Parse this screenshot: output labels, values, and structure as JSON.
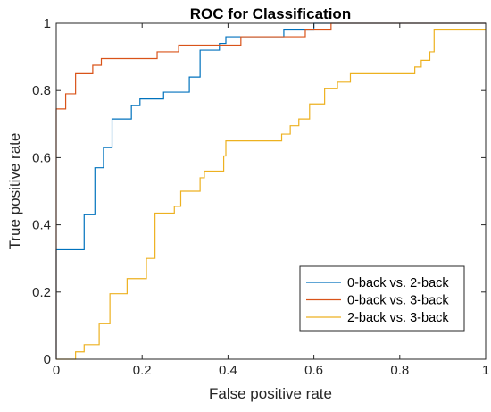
{
  "chart_data": {
    "type": "line",
    "title": "ROC for Classification",
    "xlabel": "False positive rate",
    "ylabel": "True positive rate",
    "xlim": [
      0,
      1
    ],
    "ylim": [
      0,
      1
    ],
    "xticks": [
      "0",
      "0.2",
      "0.4",
      "0.6",
      "0.8",
      "1"
    ],
    "yticks": [
      "0",
      "0.2",
      "0.4",
      "0.6",
      "0.8",
      "1"
    ],
    "grid": false,
    "legend_position": "bottom-right",
    "series": [
      {
        "name": "0-back vs. 2-back",
        "color": "#0072BD",
        "points": [
          [
            0,
            0
          ],
          [
            0,
            0.326
          ],
          [
            0.065,
            0.326
          ],
          [
            0.065,
            0.43
          ],
          [
            0.09,
            0.43
          ],
          [
            0.09,
            0.57
          ],
          [
            0.11,
            0.57
          ],
          [
            0.11,
            0.63
          ],
          [
            0.13,
            0.63
          ],
          [
            0.13,
            0.715
          ],
          [
            0.175,
            0.715
          ],
          [
            0.175,
            0.755
          ],
          [
            0.195,
            0.755
          ],
          [
            0.195,
            0.775
          ],
          [
            0.25,
            0.775
          ],
          [
            0.25,
            0.795
          ],
          [
            0.31,
            0.795
          ],
          [
            0.31,
            0.84
          ],
          [
            0.335,
            0.84
          ],
          [
            0.335,
            0.92
          ],
          [
            0.38,
            0.92
          ],
          [
            0.38,
            0.94
          ],
          [
            0.395,
            0.94
          ],
          [
            0.395,
            0.96
          ],
          [
            0.53,
            0.96
          ],
          [
            0.53,
            0.98
          ],
          [
            0.6,
            0.98
          ],
          [
            0.6,
            1
          ],
          [
            1,
            1
          ]
        ]
      },
      {
        "name": "0-back vs. 3-back",
        "color": "#D95319",
        "points": [
          [
            0,
            0
          ],
          [
            0,
            0.745
          ],
          [
            0.022,
            0.745
          ],
          [
            0.022,
            0.79
          ],
          [
            0.045,
            0.79
          ],
          [
            0.045,
            0.85
          ],
          [
            0.085,
            0.85
          ],
          [
            0.085,
            0.875
          ],
          [
            0.105,
            0.875
          ],
          [
            0.105,
            0.895
          ],
          [
            0.235,
            0.895
          ],
          [
            0.235,
            0.915
          ],
          [
            0.285,
            0.915
          ],
          [
            0.285,
            0.935
          ],
          [
            0.43,
            0.935
          ],
          [
            0.43,
            0.96
          ],
          [
            0.58,
            0.96
          ],
          [
            0.58,
            0.98
          ],
          [
            0.64,
            0.98
          ],
          [
            0.64,
            1
          ],
          [
            1,
            1
          ]
        ]
      },
      {
        "name": "2-back vs. 3-back",
        "color": "#EDB120",
        "points": [
          [
            0,
            0
          ],
          [
            0.045,
            0
          ],
          [
            0.045,
            0.022
          ],
          [
            0.065,
            0.022
          ],
          [
            0.065,
            0.043
          ],
          [
            0.1,
            0.043
          ],
          [
            0.1,
            0.107
          ],
          [
            0.125,
            0.107
          ],
          [
            0.125,
            0.195
          ],
          [
            0.165,
            0.195
          ],
          [
            0.165,
            0.24
          ],
          [
            0.21,
            0.24
          ],
          [
            0.21,
            0.3
          ],
          [
            0.23,
            0.3
          ],
          [
            0.23,
            0.435
          ],
          [
            0.275,
            0.435
          ],
          [
            0.275,
            0.455
          ],
          [
            0.29,
            0.455
          ],
          [
            0.29,
            0.5
          ],
          [
            0.335,
            0.5
          ],
          [
            0.335,
            0.54
          ],
          [
            0.345,
            0.54
          ],
          [
            0.345,
            0.56
          ],
          [
            0.39,
            0.56
          ],
          [
            0.39,
            0.605
          ],
          [
            0.395,
            0.605
          ],
          [
            0.395,
            0.65
          ],
          [
            0.525,
            0.65
          ],
          [
            0.525,
            0.67
          ],
          [
            0.545,
            0.67
          ],
          [
            0.545,
            0.695
          ],
          [
            0.565,
            0.695
          ],
          [
            0.565,
            0.715
          ],
          [
            0.59,
            0.715
          ],
          [
            0.59,
            0.76
          ],
          [
            0.625,
            0.76
          ],
          [
            0.625,
            0.805
          ],
          [
            0.655,
            0.805
          ],
          [
            0.655,
            0.825
          ],
          [
            0.685,
            0.825
          ],
          [
            0.685,
            0.85
          ],
          [
            0.835,
            0.85
          ],
          [
            0.835,
            0.87
          ],
          [
            0.85,
            0.87
          ],
          [
            0.85,
            0.89
          ],
          [
            0.87,
            0.89
          ],
          [
            0.87,
            0.915
          ],
          [
            0.88,
            0.915
          ],
          [
            0.88,
            0.98
          ],
          [
            1,
            0.98
          ]
        ]
      }
    ]
  }
}
